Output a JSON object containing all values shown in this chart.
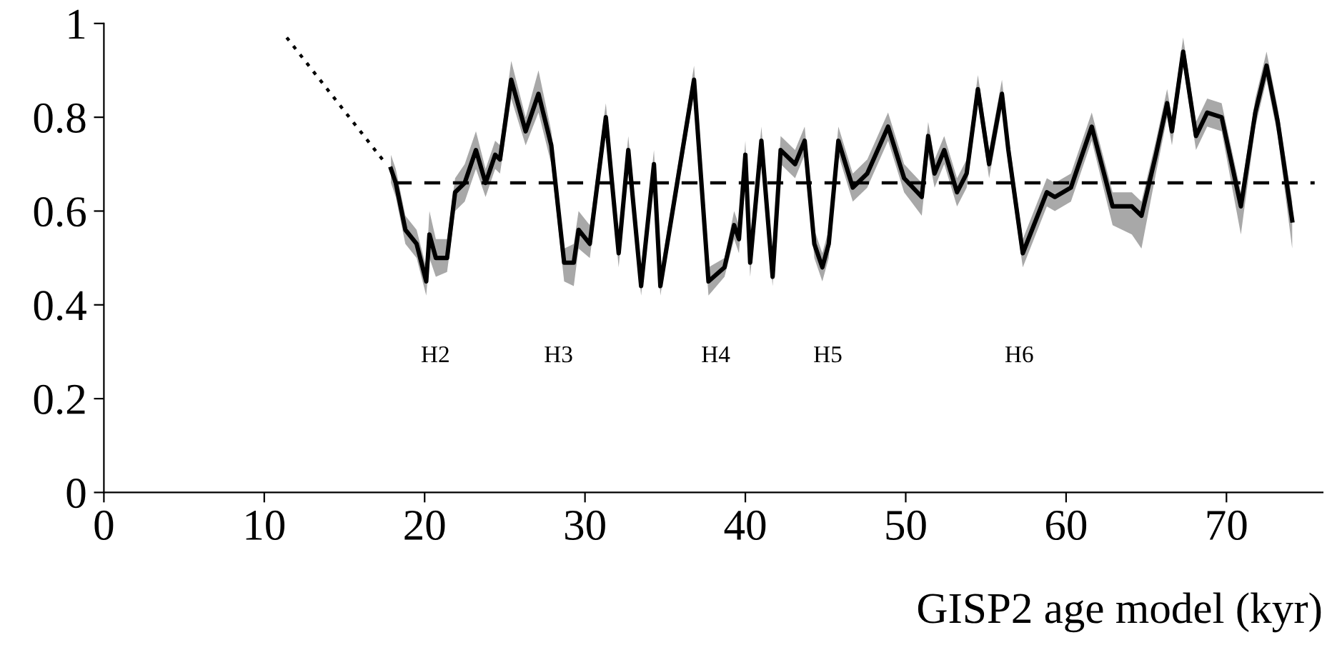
{
  "chart_data": {
    "type": "line",
    "xlabel": "GISP2 age model (kyr)",
    "xlim": [
      0,
      76
    ],
    "xticks": [
      0,
      10,
      20,
      30,
      40,
      50,
      60,
      70
    ],
    "ylim": [
      0,
      1
    ],
    "yticks": [
      0,
      0.2,
      0.4,
      0.6,
      0.8,
      1
    ],
    "grid": false,
    "legend": false,
    "marker": "none",
    "series": [
      {
        "color": "#000000",
        "line_style": "dotted",
        "x": [
          11.4,
          17.6
        ],
        "values": [
          0.97,
          0.7
        ]
      },
      {
        "color": "#000000",
        "line_style": "dashed",
        "x": [
          18.2,
          75.5
        ],
        "values": [
          0.66,
          0.66
        ]
      },
      {
        "color": "#000000",
        "line_style": "solid",
        "x": [
          17.9,
          18.2,
          18.8,
          19.5,
          20.1,
          20.3,
          20.7,
          21.4,
          21.9,
          22.5,
          23.2,
          23.8,
          24.4,
          24.7,
          25.4,
          26.3,
          27.1,
          27.9,
          28.7,
          29.3,
          29.6,
          30.3,
          31.3,
          32.1,
          32.7,
          33.5,
          34.3,
          34.7,
          36.8,
          37.7,
          38.7,
          39.3,
          39.6,
          40.0,
          40.3,
          41.0,
          41.7,
          42.2,
          43.1,
          43.7,
          44.3,
          44.8,
          45.2,
          45.8,
          46.7,
          47.6,
          48.9,
          49.9,
          51.0,
          51.4,
          51.8,
          52.4,
          53.2,
          53.8,
          54.5,
          55.2,
          56.0,
          56.4,
          57.3,
          58.8,
          59.3,
          60.3,
          61.6,
          62.9,
          64.1,
          64.7,
          65.6,
          66.3,
          66.6,
          67.3,
          68.1,
          68.8,
          69.7,
          70.9,
          71.8,
          72.5,
          73.2,
          74.1
        ],
        "values": [
          0.69,
          0.66,
          0.56,
          0.53,
          0.45,
          0.55,
          0.5,
          0.5,
          0.64,
          0.66,
          0.73,
          0.66,
          0.72,
          0.71,
          0.88,
          0.77,
          0.85,
          0.74,
          0.49,
          0.49,
          0.56,
          0.53,
          0.8,
          0.51,
          0.73,
          0.44,
          0.7,
          0.44,
          0.88,
          0.45,
          0.48,
          0.57,
          0.54,
          0.72,
          0.49,
          0.75,
          0.46,
          0.73,
          0.7,
          0.75,
          0.53,
          0.48,
          0.53,
          0.75,
          0.65,
          0.68,
          0.78,
          0.67,
          0.63,
          0.76,
          0.68,
          0.73,
          0.64,
          0.68,
          0.86,
          0.7,
          0.85,
          0.73,
          0.51,
          0.64,
          0.63,
          0.65,
          0.78,
          0.61,
          0.61,
          0.59,
          0.72,
          0.83,
          0.77,
          0.94,
          0.76,
          0.81,
          0.8,
          0.61,
          0.81,
          0.91,
          0.79,
          0.58
        ],
        "lower": [
          0.66,
          0.63,
          0.53,
          0.5,
          0.42,
          0.5,
          0.46,
          0.47,
          0.6,
          0.62,
          0.69,
          0.63,
          0.69,
          0.68,
          0.84,
          0.74,
          0.81,
          0.7,
          0.45,
          0.44,
          0.52,
          0.5,
          0.77,
          0.48,
          0.7,
          0.42,
          0.67,
          0.42,
          0.85,
          0.42,
          0.46,
          0.54,
          0.51,
          0.69,
          0.46,
          0.72,
          0.44,
          0.7,
          0.67,
          0.72,
          0.5,
          0.45,
          0.5,
          0.72,
          0.62,
          0.65,
          0.75,
          0.64,
          0.59,
          0.72,
          0.65,
          0.7,
          0.61,
          0.65,
          0.83,
          0.67,
          0.82,
          0.7,
          0.48,
          0.61,
          0.6,
          0.62,
          0.75,
          0.57,
          0.55,
          0.52,
          0.68,
          0.8,
          0.74,
          0.91,
          0.73,
          0.78,
          0.77,
          0.55,
          0.78,
          0.88,
          0.76,
          0.52
        ],
        "upper": [
          0.72,
          0.69,
          0.59,
          0.56,
          0.48,
          0.6,
          0.54,
          0.54,
          0.67,
          0.7,
          0.77,
          0.69,
          0.75,
          0.74,
          0.92,
          0.8,
          0.9,
          0.77,
          0.52,
          0.53,
          0.6,
          0.57,
          0.83,
          0.54,
          0.76,
          0.47,
          0.73,
          0.47,
          0.91,
          0.48,
          0.5,
          0.6,
          0.57,
          0.75,
          0.52,
          0.78,
          0.48,
          0.76,
          0.73,
          0.78,
          0.56,
          0.51,
          0.56,
          0.78,
          0.68,
          0.71,
          0.81,
          0.7,
          0.66,
          0.79,
          0.71,
          0.76,
          0.67,
          0.71,
          0.89,
          0.73,
          0.88,
          0.76,
          0.54,
          0.67,
          0.66,
          0.68,
          0.81,
          0.64,
          0.64,
          0.62,
          0.75,
          0.86,
          0.8,
          0.97,
          0.79,
          0.84,
          0.83,
          0.64,
          0.84,
          0.94,
          0.82,
          0.62
        ]
      }
    ],
    "annotations": [
      "H2",
      "H3",
      "H4",
      "H5",
      "H6"
    ]
  }
}
